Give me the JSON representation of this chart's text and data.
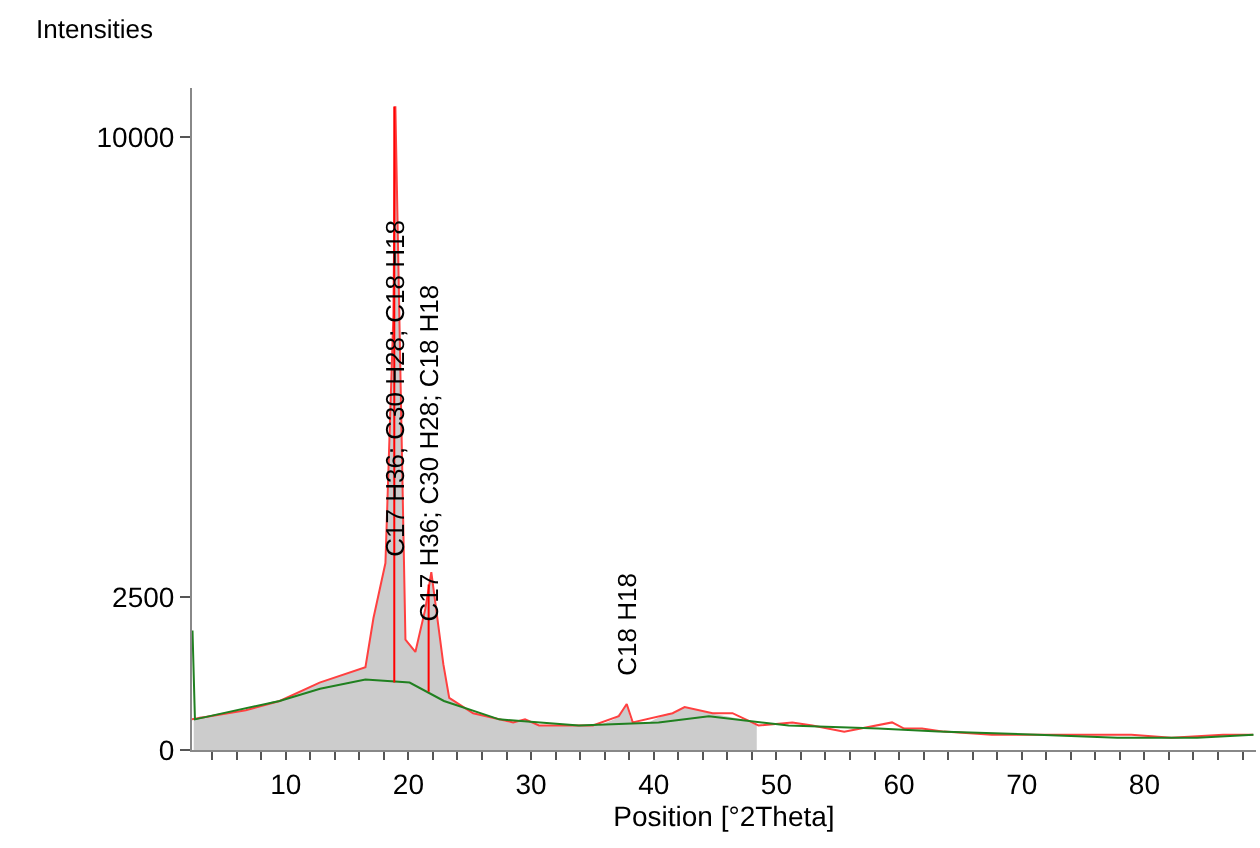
{
  "chart_data": {
    "type": "line",
    "xlabel": "Position [°2Theta]",
    "ylabel": "Intensities",
    "xlim": [
      2.36,
      89.1
    ],
    "ylim": [
      0,
      10800
    ],
    "marker": "none",
    "xticks": [
      {
        "value": 4,
        "label": null
      },
      {
        "value": 6,
        "label": null
      },
      {
        "value": 8,
        "label": null
      },
      10,
      {
        "value": 12,
        "label": null
      },
      {
        "value": 14,
        "label": null
      },
      {
        "value": 16,
        "label": null
      },
      {
        "value": 18,
        "label": null
      },
      20,
      {
        "value": 22,
        "label": null
      },
      {
        "value": 24,
        "label": null
      },
      {
        "value": 26,
        "label": null
      },
      {
        "value": 28,
        "label": null
      },
      30,
      {
        "value": 32,
        "label": null
      },
      {
        "value": 34,
        "label": null
      },
      {
        "value": 36,
        "label": null
      },
      {
        "value": 38,
        "label": null
      },
      40,
      {
        "value": 42,
        "label": null
      },
      {
        "value": 44,
        "label": null
      },
      {
        "value": 46,
        "label": null
      },
      {
        "value": 48,
        "label": null
      },
      50,
      {
        "value": 52,
        "label": null
      },
      {
        "value": 54,
        "label": null
      },
      {
        "value": 56,
        "label": null
      },
      {
        "value": 58,
        "label": null
      },
      60,
      {
        "value": 62,
        "label": null
      },
      {
        "value": 64,
        "label": null
      },
      {
        "value": 66,
        "label": null
      },
      {
        "value": 68,
        "label": null
      },
      70,
      {
        "value": 72,
        "label": null
      },
      {
        "value": 74,
        "label": null
      },
      {
        "value": 76,
        "label": null
      },
      {
        "value": 78,
        "label": null
      },
      80,
      {
        "value": 82,
        "label": null
      },
      {
        "value": 84,
        "label": null
      },
      {
        "value": 86,
        "label": null
      },
      {
        "value": 88,
        "label": null
      }
    ],
    "yticks": [
      0,
      2500,
      10000
    ],
    "series": [
      {
        "type": "area",
        "color": "#cccccc",
        "x": [
          2.5,
          3.0,
          3.2,
          3.5,
          4.6,
          5.0,
          6.75,
          9.0,
          9.3,
          9.7,
          12.1,
          12.5,
          12.9,
          16.5,
          17.15,
          18.13,
          18.78,
          18.94,
          19.76,
          20.57,
          21.38,
          21.87,
          22.85,
          23.33,
          25.28,
          28.2,
          28.35,
          28.5,
          29.51,
          30.65,
          32.3,
          32.7,
          33.1,
          35.2,
          35.35,
          35.5,
          36.8,
          36.9,
          37.0,
          37.8,
          38.1,
          38.3,
          38.5,
          39.6,
          39.85,
          40.1,
          41.2,
          41.45,
          41.7,
          42.52,
          44.6,
          45.0,
          47.2,
          48.4
        ],
        "values": [
          500,
          550,
          null,
          550,
          600,
          null,
          650,
          800,
          null,
          800,
          1050,
          null,
          1100,
          1350,
          2150,
          3050,
          7100,
          10500,
          1800,
          1600,
          2300,
          2900,
          1400,
          850,
          600,
          450,
          null,
          450,
          500,
          400,
          400,
          null,
          400,
          400,
          null,
          400,
          500,
          null,
          550,
          750,
          500,
          null,
          450,
          450,
          null,
          500,
          600,
          null,
          600,
          700,
          600,
          null,
          500,
          400
        ]
      },
      {
        "color": "#ff4040",
        "x": [
          2.36,
          6.75,
          9.51,
          12.76,
          16.5,
          17.15,
          18.13,
          18.78,
          18.94,
          19.76,
          20.57,
          21.38,
          21.87,
          22.85,
          23.33,
          25.28,
          28.54,
          29.51,
          30.65,
          35.04,
          37.15,
          37.8,
          38.29,
          41.54,
          42.52,
          44.8,
          46.42,
          48.54,
          51.3,
          52.93,
          55.53,
          59.43,
          60.41,
          61.87,
          63.66,
          67.56,
          71.3,
          75.69,
          78.94,
          82.2,
          86.42,
          88.86
        ],
        "values": [
          500,
          650,
          800,
          1100,
          1350,
          2150,
          3050,
          7100,
          10500,
          1800,
          1600,
          2300,
          2900,
          1400,
          850,
          600,
          450,
          500,
          400,
          400,
          550,
          750,
          450,
          600,
          700,
          600,
          600,
          400,
          450,
          400,
          300,
          450,
          350,
          350,
          300,
          250,
          250,
          250,
          250,
          200,
          250,
          250
        ]
      },
      {
        "color": "#208020",
        "x": [
          2.4,
          2.6,
          9.5,
          12.8,
          16.5,
          20.1,
          22.9,
          27.4,
          33.9,
          40.4,
          44.5,
          51.0,
          58.3,
          63.2,
          71.3,
          77.8,
          84.3,
          88.9
        ],
        "values": [
          1950,
          500,
          800,
          1000,
          1150,
          1100,
          800,
          500,
          400,
          450,
          550,
          400,
          350,
          300,
          250,
          200,
          200,
          250
        ]
      },
      {
        "color": "#ff0000",
        "x": [
          18.85,
          18.85
        ],
        "values": [
          1100,
          10500
        ]
      },
      {
        "color": "#ff0000",
        "x": [
          21.65,
          21.65
        ],
        "values": [
          950,
          2700
        ]
      }
    ],
    "annotations": [
      {
        "text": "C17 H36; C30 H28; C18 H18",
        "x": 18.85,
        "y": 2700
      },
      {
        "text": "C17 H36; C30 H28; C18 H18",
        "x": 21.65,
        "y": 1650
      },
      {
        "text": "C18 H18",
        "x": 37.8,
        "y": 750
      }
    ]
  }
}
